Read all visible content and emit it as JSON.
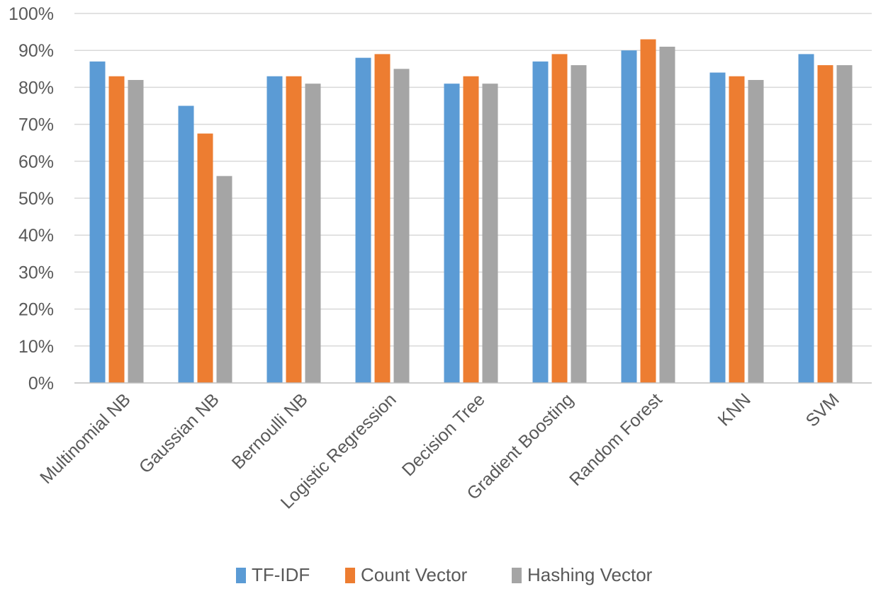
{
  "chart_data": {
    "type": "bar",
    "title": "",
    "xlabel": "",
    "ylabel": "",
    "ylim": [
      0,
      100
    ],
    "y_tick_values": [
      0,
      10,
      20,
      30,
      40,
      50,
      60,
      70,
      80,
      90,
      100
    ],
    "y_tick_labels": [
      "0%",
      "10%",
      "20%",
      "30%",
      "40%",
      "50%",
      "60%",
      "70%",
      "80%",
      "90%",
      "100%"
    ],
    "grid": true,
    "legend_position": "bottom",
    "categories": [
      "Multinomial NB",
      "Gaussian NB",
      "Bernoulli NB",
      "Logistic Regression",
      "Decision Tree",
      "Gradient Boosting",
      "Random Forest",
      "KNN",
      "SVM"
    ],
    "series": [
      {
        "name": "TF-IDF",
        "color": "#5b9bd5",
        "values": [
          87,
          75,
          83,
          88,
          81,
          87,
          90,
          84,
          89
        ]
      },
      {
        "name": "Count Vector",
        "color": "#ed7d31",
        "values": [
          83,
          67.5,
          83,
          89,
          83,
          89,
          93,
          83,
          86
        ]
      },
      {
        "name": "Hashing Vector",
        "color": "#a5a5a5",
        "values": [
          82,
          56,
          81,
          85,
          81,
          86,
          91,
          82,
          86
        ]
      }
    ]
  }
}
